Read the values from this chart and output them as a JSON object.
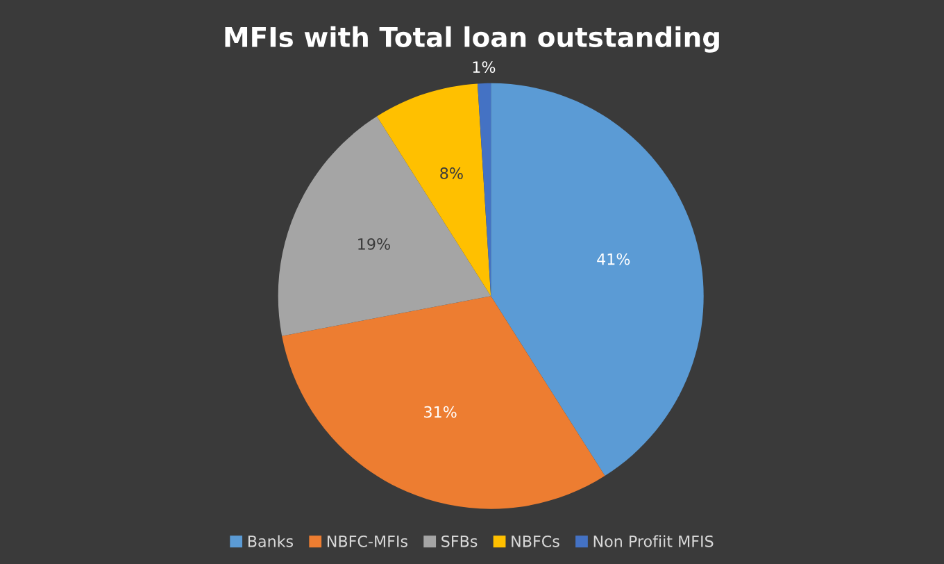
{
  "chart_data": {
    "type": "pie",
    "title": "MFIs with Total loan outstanding",
    "categories": [
      "Banks",
      "NBFC-MFIs",
      "SFBs",
      "NBFCs",
      "Non Profiit MFIS"
    ],
    "values": [
      41,
      31,
      19,
      8,
      1
    ],
    "colors": [
      "#5b9bd5",
      "#ed7d31",
      "#a5a5a5",
      "#ffc000",
      "#4472c4"
    ],
    "value_labels": [
      "41%",
      "31%",
      "19%",
      "8%",
      "1%"
    ],
    "legend": "bottom"
  }
}
